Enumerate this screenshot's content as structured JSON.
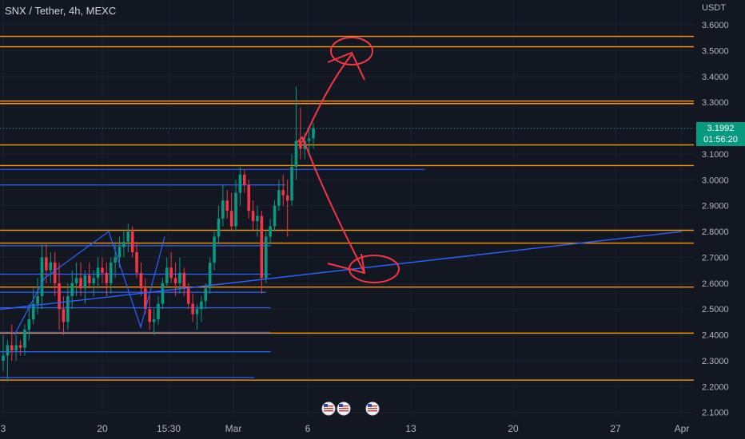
{
  "header": {
    "symbol": "SNX / Tether, 4h, MEXC"
  },
  "axis": {
    "currency": "USDT"
  },
  "last_price": {
    "value": "3.1992",
    "countdown": "01:56:20",
    "color": "#089981"
  },
  "colors": {
    "up": "#089981",
    "down": "#f23645",
    "level_orange": "#ff9800",
    "level_blue": "#2962ff",
    "annotation": "#f23645",
    "background": "#131722"
  },
  "icons": [
    "flag-usa-icon",
    "flag-usa-icon",
    "flag-usa-icon"
  ],
  "chart_data": {
    "type": "candlestick",
    "title": "SNX / Tether, 4h, MEXC",
    "x_ticks": [
      "3",
      "20",
      "15:30",
      "Mar",
      "6",
      "13",
      "20",
      "27",
      "Apr"
    ],
    "y_ticks": [
      "2.1000",
      "2.2000",
      "2.3000",
      "2.4000",
      "2.5000",
      "2.6000",
      "2.7000",
      "2.8000",
      "2.9000",
      "3.0000",
      "3.1000",
      "3.2000",
      "3.3000",
      "3.4000",
      "3.5000",
      "3.6000"
    ],
    "ylim": [
      2.09,
      3.64
    ],
    "grid": true,
    "current_price": 3.1992,
    "orange_levels": [
      3.555,
      3.515,
      3.305,
      3.295,
      3.135,
      3.055,
      2.805,
      2.755,
      2.585,
      2.407,
      2.225
    ],
    "blue_levels": [
      {
        "value": 3.04,
        "x_end_day": 14
      },
      {
        "value": 2.98,
        "x_end_day": 4.5
      },
      {
        "value": 2.745,
        "x_end_day": 3.5
      },
      {
        "value": 2.635,
        "x_end_day": 3.5
      },
      {
        "value": 2.565,
        "x_end_day": 3.2
      },
      {
        "value": 2.505,
        "x_end_day": 3.5
      },
      {
        "value": 2.41,
        "x_end_day": 3.5
      },
      {
        "value": 2.335,
        "x_end_day": 3.5
      },
      {
        "value": 2.235,
        "x_end_day": 2.4
      }
    ],
    "trendline": {
      "from": [
        -48.5,
        2.32
      ],
      "to": [
        25.5,
        2.8
      ]
    },
    "candles": [
      [
        2.3,
        2.4,
        2.26,
        2.32
      ],
      [
        2.32,
        2.38,
        2.22,
        2.36
      ],
      [
        2.36,
        2.44,
        2.3,
        2.34
      ],
      [
        2.34,
        2.4,
        2.3,
        2.36
      ],
      [
        2.36,
        2.38,
        2.32,
        2.35
      ],
      [
        2.35,
        2.44,
        2.32,
        2.42
      ],
      [
        2.42,
        2.52,
        2.38,
        2.46
      ],
      [
        2.46,
        2.58,
        2.44,
        2.52
      ],
      [
        2.52,
        2.62,
        2.48,
        2.55
      ],
      [
        2.55,
        2.75,
        2.5,
        2.7
      ],
      [
        2.7,
        2.75,
        2.6,
        2.65
      ],
      [
        2.65,
        2.72,
        2.6,
        2.68
      ],
      [
        2.68,
        2.72,
        2.55,
        2.6
      ],
      [
        2.6,
        2.68,
        2.42,
        2.5
      ],
      [
        2.5,
        2.55,
        2.4,
        2.45
      ],
      [
        2.45,
        2.6,
        2.42,
        2.55
      ],
      [
        2.55,
        2.65,
        2.5,
        2.6
      ],
      [
        2.6,
        2.68,
        2.55,
        2.62
      ],
      [
        2.62,
        2.68,
        2.55,
        2.58
      ],
      [
        2.58,
        2.65,
        2.52,
        2.63
      ],
      [
        2.63,
        2.68,
        2.58,
        2.6
      ],
      [
        2.6,
        2.65,
        2.55,
        2.62
      ],
      [
        2.62,
        2.7,
        2.58,
        2.66
      ],
      [
        2.66,
        2.7,
        2.6,
        2.64
      ],
      [
        2.64,
        2.68,
        2.55,
        2.6
      ],
      [
        2.6,
        2.7,
        2.56,
        2.68
      ],
      [
        2.68,
        2.75,
        2.62,
        2.7
      ],
      [
        2.7,
        2.78,
        2.66,
        2.74
      ],
      [
        2.74,
        2.8,
        2.7,
        2.76
      ],
      [
        2.76,
        2.83,
        2.72,
        2.8
      ],
      [
        2.8,
        2.82,
        2.7,
        2.72
      ],
      [
        2.72,
        2.76,
        2.62,
        2.64
      ],
      [
        2.64,
        2.68,
        2.55,
        2.58
      ],
      [
        2.58,
        2.62,
        2.48,
        2.5
      ],
      [
        2.5,
        2.55,
        2.42,
        2.45
      ],
      [
        2.45,
        2.5,
        2.4,
        2.46
      ],
      [
        2.46,
        2.55,
        2.44,
        2.52
      ],
      [
        2.52,
        2.62,
        2.5,
        2.6
      ],
      [
        2.6,
        2.7,
        2.58,
        2.66
      ],
      [
        2.66,
        2.72,
        2.6,
        2.62
      ],
      [
        2.62,
        2.68,
        2.55,
        2.6
      ],
      [
        2.6,
        2.7,
        2.56,
        2.64
      ],
      [
        2.64,
        2.66,
        2.55,
        2.58
      ],
      [
        2.58,
        2.6,
        2.5,
        2.52
      ],
      [
        2.52,
        2.56,
        2.45,
        2.48
      ],
      [
        2.48,
        2.52,
        2.42,
        2.5
      ],
      [
        2.5,
        2.55,
        2.45,
        2.53
      ],
      [
        2.53,
        2.6,
        2.5,
        2.58
      ],
      [
        2.58,
        2.7,
        2.56,
        2.68
      ],
      [
        2.68,
        2.8,
        2.65,
        2.78
      ],
      [
        2.78,
        2.9,
        2.75,
        2.85
      ],
      [
        2.85,
        2.98,
        2.82,
        2.92
      ],
      [
        2.92,
        2.96,
        2.85,
        2.88
      ],
      [
        2.88,
        2.95,
        2.8,
        2.82
      ],
      [
        2.82,
        3.0,
        2.8,
        2.95
      ],
      [
        2.95,
        3.05,
        2.9,
        3.02
      ],
      [
        3.02,
        3.04,
        2.95,
        2.98
      ],
      [
        2.98,
        3.0,
        2.85,
        2.88
      ],
      [
        2.88,
        2.92,
        2.8,
        2.84
      ],
      [
        2.84,
        2.9,
        2.78,
        2.86
      ],
      [
        2.86,
        2.88,
        2.56,
        2.62
      ],
      [
        2.62,
        2.8,
        2.6,
        2.78
      ],
      [
        2.78,
        2.85,
        2.75,
        2.82
      ],
      [
        2.82,
        2.92,
        2.8,
        2.9
      ],
      [
        2.9,
        3.0,
        2.88,
        2.96
      ],
      [
        2.96,
        3.02,
        2.9,
        2.94
      ],
      [
        2.94,
        3.0,
        2.78,
        2.92
      ],
      [
        2.92,
        3.1,
        2.9,
        3.05
      ],
      [
        3.05,
        3.36,
        3.0,
        3.15
      ],
      [
        3.15,
        3.28,
        3.08,
        3.12
      ],
      [
        3.12,
        3.18,
        3.08,
        3.15
      ],
      [
        3.15,
        3.2,
        3.1,
        3.16
      ],
      [
        3.16,
        3.22,
        3.12,
        3.2
      ]
    ]
  }
}
